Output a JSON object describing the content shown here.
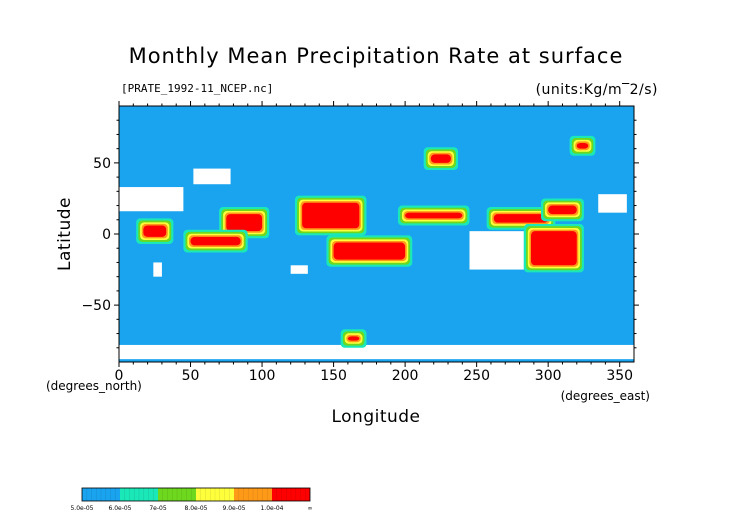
{
  "chart_data": {
    "type": "heatmap",
    "title": "Monthly Mean Precipitation Rate at surface",
    "subtitle_left": "[PRATE_1992-11_NCEP.nc]",
    "subtitle_right": "(units:Kg/m‾2/s)",
    "xlabel": "Longitude",
    "ylabel": "Latitude",
    "xunit": "(degrees_east)",
    "yunit": "(degrees_north)",
    "xlim": [
      0,
      360
    ],
    "ylim": [
      -90,
      90
    ],
    "x_ticks": [
      "0",
      "50",
      "100",
      "150",
      "200",
      "250",
      "300",
      "350"
    ],
    "x_tick_values": [
      0,
      50,
      100,
      150,
      200,
      250,
      300,
      350
    ],
    "y_ticks": [
      "50",
      "0",
      "−50"
    ],
    "y_tick_values": [
      50,
      0,
      -50
    ],
    "colorbar": {
      "labels": [
        "5.0e-05",
        "6.0e-05",
        "7e-05",
        "8.0e-05",
        "9.0e-05",
        "1.0e-04",
        "∞"
      ],
      "colors": [
        "#1aa3ee",
        "#1ae8b8",
        "#6ed81e",
        "#ffff3c",
        "#ff9a18",
        "#ff0000"
      ]
    },
    "background_color": "#1aa3ee",
    "regions": [
      {
        "level": 5,
        "lon": [
          128,
          168
        ],
        "lat": [
          4,
          22
        ]
      },
      {
        "level": 5,
        "lon": [
          150,
          200
        ],
        "lat": [
          -18,
          -6
        ]
      },
      {
        "level": 5,
        "lon": [
          75,
          100
        ],
        "lat": [
          2,
          14
        ]
      },
      {
        "level": 5,
        "lon": [
          50,
          85
        ],
        "lat": [
          -8,
          -2
        ]
      },
      {
        "level": 5,
        "lon": [
          17,
          33
        ],
        "lat": [
          -2,
          6
        ]
      },
      {
        "level": 5,
        "lon": [
          200,
          240
        ],
        "lat": [
          11,
          15
        ]
      },
      {
        "level": 5,
        "lon": [
          262,
          300
        ],
        "lat": [
          8,
          14
        ]
      },
      {
        "level": 5,
        "lon": [
          288,
          320
        ],
        "lat": [
          -22,
          2
        ]
      },
      {
        "level": 5,
        "lon": [
          300,
          320
        ],
        "lat": [
          14,
          20
        ]
      },
      {
        "level": 5,
        "lon": [
          218,
          232
        ],
        "lat": [
          50,
          56
        ]
      },
      {
        "level": 5,
        "lon": [
          320,
          328
        ],
        "lat": [
          60,
          64
        ]
      },
      {
        "level": 5,
        "lon": [
          160,
          168
        ],
        "lat": [
          -75,
          -72
        ]
      }
    ],
    "white_regions": [
      {
        "lon": [
          0,
          45
        ],
        "lat": [
          16,
          33
        ]
      },
      {
        "lon": [
          52,
          78
        ],
        "lat": [
          35,
          46
        ]
      },
      {
        "lon": [
          245,
          283
        ],
        "lat": [
          -25,
          2
        ]
      },
      {
        "lon": [
          335,
          355
        ],
        "lat": [
          15,
          28
        ]
      },
      {
        "lon": [
          0,
          360
        ],
        "lat": [
          -88,
          -78
        ]
      },
      {
        "lon": [
          24,
          30
        ],
        "lat": [
          -30,
          -20
        ]
      },
      {
        "lon": [
          120,
          132
        ],
        "lat": [
          -28,
          -22
        ]
      }
    ]
  }
}
